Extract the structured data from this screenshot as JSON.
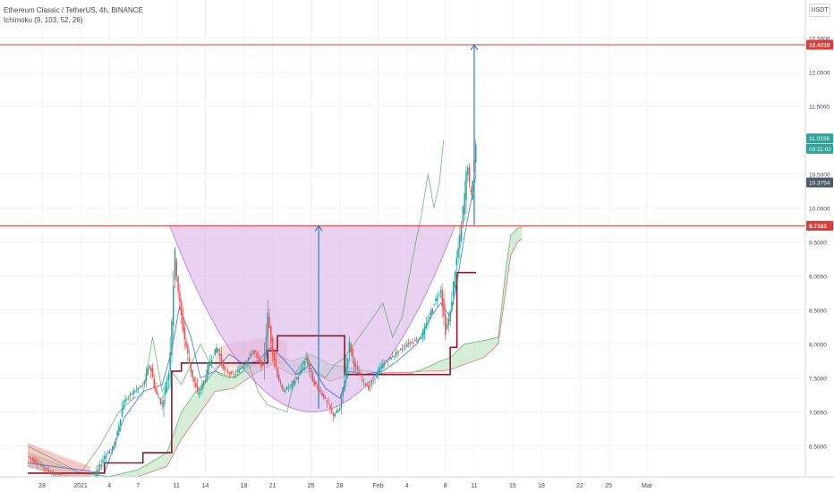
{
  "header": {
    "title": "Ethereum Classic / TetherUS, 4h, BINANCE",
    "indicator": "Ichimoku (9, 103, 52, 26)",
    "currency_button": "USDT"
  },
  "colors": {
    "up": "#26a69a",
    "down": "#ef5350",
    "level_line": "#e53935",
    "arrow": "#2f7fc1",
    "cup_fill": "#d9b2e8",
    "cup_stroke": "#c48ad8",
    "kijun": "#8b1a2b",
    "tenkan": "#2962ff",
    "lagging": "#43a047",
    "cloud_green": "#a5d6a7",
    "cloud_red": "#ef9a9a"
  },
  "chart_data": {
    "type": "candlestick",
    "symbol": "Ethereum Classic / TetherUS",
    "timeframe": "4h",
    "exchange": "BINANCE",
    "y_axis": {
      "ylim": [
        6.1,
        13.0
      ],
      "ticks": [
        "6.5000",
        "7.0000",
        "7.5000",
        "8.0000",
        "8.5000",
        "9.0000",
        "9.5000",
        "10.0000",
        "10.5000",
        "11.5000",
        "12.0000",
        "12.5000"
      ],
      "tick_values": [
        6.5,
        7.0,
        7.5,
        8.0,
        8.5,
        9.0,
        9.5,
        10.0,
        10.5,
        11.5,
        12.0,
        12.5
      ]
    },
    "x_axis": {
      "labels": [
        "28",
        "2021",
        "4",
        "7",
        "11",
        "14",
        "18",
        "21",
        "25",
        "28",
        "Feb",
        "4",
        "8",
        "11",
        "15",
        "18",
        "22",
        "25",
        "Mar"
      ],
      "positions": [
        -4,
        0,
        3,
        6,
        10,
        13,
        17,
        20,
        24,
        27,
        31,
        34,
        38,
        41,
        45,
        48,
        52,
        55,
        59
      ],
      "unit": "days since 1 Jan 2021"
    },
    "price_range": [
      -5.5,
      41.2
    ],
    "levels": [
      {
        "value": 12.401,
        "label": "12.4010"
      },
      {
        "value": 9.7383,
        "label": "9.7383"
      }
    ],
    "price_tags": [
      {
        "value": 11.0238,
        "label": "11.0238",
        "bg": "#26a69a"
      },
      {
        "value": 10.87,
        "label": "03:11:02",
        "bg": "#26a69a"
      },
      {
        "value": 10.3754,
        "label": "10.3754",
        "bg": "#4a5a6b"
      }
    ],
    "cup": {
      "left_day": 9.3,
      "right_day": 39.0,
      "top": 9.7383,
      "bottom": 7.0
    },
    "arrows": [
      {
        "day": 24.8,
        "from": 7.05,
        "to": 9.7383
      },
      {
        "day": 41.0,
        "from": 9.75,
        "to": 12.401
      }
    ],
    "price_path": [
      [
        -5.5,
        6.35
      ],
      [
        -3.5,
        6.15
      ],
      [
        -2,
        6.0
      ],
      [
        0,
        5.9
      ],
      [
        1.5,
        6.05
      ],
      [
        2.5,
        6.35
      ],
      [
        3.5,
        6.5
      ],
      [
        4.5,
        7.15
      ],
      [
        5.5,
        7.3
      ],
      [
        6.5,
        7.4
      ],
      [
        7.2,
        7.7
      ],
      [
        7.8,
        7.3
      ],
      [
        8.5,
        7.1
      ],
      [
        9.2,
        7.6
      ],
      [
        9.5,
        8.4
      ],
      [
        9.8,
        9.35
      ],
      [
        10.3,
        8.6
      ],
      [
        10.8,
        8.1
      ],
      [
        11.5,
        7.6
      ],
      [
        12.2,
        7.25
      ],
      [
        13.0,
        7.5
      ],
      [
        13.5,
        7.75
      ],
      [
        14.2,
        7.95
      ],
      [
        15.0,
        7.6
      ],
      [
        16.0,
        7.55
      ],
      [
        17.0,
        7.7
      ],
      [
        18.0,
        7.9
      ],
      [
        19.0,
        7.65
      ],
      [
        19.5,
        8.4
      ],
      [
        20.0,
        7.9
      ],
      [
        20.5,
        7.55
      ],
      [
        21.0,
        7.3
      ],
      [
        22.0,
        7.4
      ],
      [
        22.8,
        7.55
      ],
      [
        23.5,
        7.8
      ],
      [
        24.2,
        7.45
      ],
      [
        25.0,
        7.3
      ],
      [
        25.8,
        7.1
      ],
      [
        26.3,
        6.95
      ],
      [
        27.0,
        7.05
      ],
      [
        27.5,
        7.5
      ],
      [
        28.0,
        8.0
      ],
      [
        28.5,
        7.7
      ],
      [
        29.2,
        7.5
      ],
      [
        30.0,
        7.35
      ],
      [
        30.8,
        7.55
      ],
      [
        31.5,
        7.7
      ],
      [
        32.3,
        7.8
      ],
      [
        33.2,
        7.9
      ],
      [
        34.0,
        8.0
      ],
      [
        34.8,
        8.05
      ],
      [
        35.5,
        8.1
      ],
      [
        36.2,
        8.35
      ],
      [
        36.8,
        8.6
      ],
      [
        37.5,
        8.8
      ],
      [
        38.0,
        8.2
      ],
      [
        38.5,
        8.45
      ],
      [
        39.0,
        9.1
      ],
      [
        39.6,
        9.65
      ],
      [
        40.0,
        10.2
      ],
      [
        40.3,
        10.7
      ],
      [
        40.6,
        10.1
      ],
      [
        40.9,
        10.55
      ],
      [
        41.2,
        11.0
      ]
    ],
    "kijun_path": [
      [
        -5.5,
        6.1
      ],
      [
        2.5,
        6.1
      ],
      [
        2.5,
        6.25
      ],
      [
        6.5,
        6.25
      ],
      [
        6.5,
        6.4
      ],
      [
        9.5,
        6.4
      ],
      [
        9.5,
        7.6
      ],
      [
        10.5,
        7.6
      ],
      [
        10.5,
        7.72
      ],
      [
        19.5,
        7.72
      ],
      [
        19.5,
        7.9
      ],
      [
        20.5,
        7.9
      ],
      [
        20.5,
        8.12
      ],
      [
        27.5,
        8.12
      ],
      [
        27.5,
        7.55
      ],
      [
        38.5,
        7.55
      ],
      [
        38.5,
        7.95
      ],
      [
        39.2,
        7.95
      ],
      [
        39.2,
        9.05
      ],
      [
        41.2,
        9.05
      ]
    ],
    "tenkan_path": [
      [
        -5.5,
        6.25
      ],
      [
        2.5,
        6.1
      ],
      [
        4.5,
        6.9
      ],
      [
        6.5,
        7.3
      ],
      [
        8.5,
        7.4
      ],
      [
        9.5,
        7.9
      ],
      [
        10.3,
        8.55
      ],
      [
        11.5,
        8.1
      ],
      [
        12.5,
        7.5
      ],
      [
        14.0,
        7.6
      ],
      [
        15.5,
        7.85
      ],
      [
        17.0,
        7.7
      ],
      [
        18.5,
        7.75
      ],
      [
        19.8,
        7.95
      ],
      [
        21.0,
        7.8
      ],
      [
        22.5,
        7.55
      ],
      [
        24.0,
        7.7
      ],
      [
        25.5,
        7.35
      ],
      [
        27.0,
        7.2
      ],
      [
        28.0,
        7.6
      ],
      [
        29.5,
        7.55
      ],
      [
        31.5,
        7.6
      ],
      [
        33.0,
        7.75
      ],
      [
        35.0,
        8.0
      ],
      [
        36.5,
        8.4
      ],
      [
        37.5,
        8.6
      ],
      [
        38.5,
        8.4
      ],
      [
        39.2,
        8.9
      ],
      [
        40.0,
        9.6
      ],
      [
        41.2,
        10.5
      ]
    ],
    "cloud_a": [
      [
        -5.5,
        6.4
      ],
      [
        0,
        6.1
      ],
      [
        3,
        6.05
      ],
      [
        6,
        6.15
      ],
      [
        9,
        6.4
      ],
      [
        10.5,
        7.0
      ],
      [
        12,
        7.3
      ],
      [
        14,
        7.6
      ],
      [
        16,
        7.5
      ],
      [
        18,
        7.7
      ],
      [
        20,
        7.85
      ],
      [
        22,
        7.75
      ],
      [
        24,
        7.85
      ],
      [
        26,
        7.7
      ],
      [
        28,
        7.65
      ],
      [
        30,
        7.6
      ],
      [
        32,
        7.55
      ],
      [
        34,
        7.55
      ],
      [
        36,
        7.65
      ],
      [
        37.5,
        7.75
      ],
      [
        38.5,
        7.8
      ],
      [
        40,
        8.0
      ],
      [
        42,
        8.05
      ],
      [
        43.5,
        8.1
      ],
      [
        44.3,
        9.1
      ],
      [
        44.8,
        9.6
      ],
      [
        45.5,
        9.7
      ],
      [
        46,
        9.72
      ]
    ],
    "cloud_b": [
      [
        -5.5,
        6.2
      ],
      [
        0,
        6.0
      ],
      [
        3,
        6.0
      ],
      [
        6,
        6.05
      ],
      [
        9,
        6.2
      ],
      [
        10.5,
        6.6
      ],
      [
        12,
        6.9
      ],
      [
        14,
        7.3
      ],
      [
        16,
        7.35
      ],
      [
        18,
        7.55
      ],
      [
        20,
        7.7
      ],
      [
        22,
        7.55
      ],
      [
        24,
        7.6
      ],
      [
        26,
        7.45
      ],
      [
        28,
        7.55
      ],
      [
        30,
        7.55
      ],
      [
        32,
        7.58
      ],
      [
        34,
        7.58
      ],
      [
        36,
        7.6
      ],
      [
        37.5,
        7.6
      ],
      [
        38.5,
        7.62
      ],
      [
        40,
        7.7
      ],
      [
        42,
        7.8
      ],
      [
        43.5,
        8.0
      ],
      [
        44.3,
        8.8
      ],
      [
        44.8,
        9.3
      ],
      [
        45.5,
        9.5
      ],
      [
        46,
        9.55
      ]
    ],
    "lagging_path": [
      [
        -5.5,
        6.5
      ],
      [
        0,
        6.1
      ],
      [
        2,
        6.5
      ],
      [
        4,
        7.0
      ],
      [
        5.5,
        7.2
      ],
      [
        6.5,
        7.25
      ],
      [
        7.5,
        8.1
      ],
      [
        8.5,
        7.3
      ],
      [
        9.5,
        7.6
      ],
      [
        10.5,
        7.4
      ],
      [
        11.5,
        7.7
      ],
      [
        12.5,
        8.0
      ],
      [
        13.5,
        7.7
      ],
      [
        14.5,
        7.55
      ],
      [
        15.5,
        7.5
      ],
      [
        16.5,
        7.55
      ],
      [
        17.5,
        7.7
      ],
      [
        18.5,
        7.3
      ],
      [
        19.5,
        7.1
      ],
      [
        20.5,
        7.05
      ],
      [
        21.5,
        7.0
      ],
      [
        22.5,
        7.6
      ],
      [
        23.5,
        7.8
      ],
      [
        24.5,
        7.6
      ],
      [
        25.5,
        7.5
      ],
      [
        26.5,
        7.7
      ],
      [
        27.5,
        7.8
      ],
      [
        28.5,
        8.0
      ],
      [
        29.5,
        8.2
      ],
      [
        30.5,
        8.4
      ],
      [
        31.5,
        8.6
      ],
      [
        32.5,
        8.1
      ],
      [
        33.5,
        8.4
      ],
      [
        34.5,
        9.2
      ],
      [
        35.5,
        9.9
      ],
      [
        36.2,
        10.5
      ],
      [
        36.8,
        10.0
      ],
      [
        37.4,
        10.4
      ],
      [
        37.8,
        11.0
      ]
    ]
  }
}
